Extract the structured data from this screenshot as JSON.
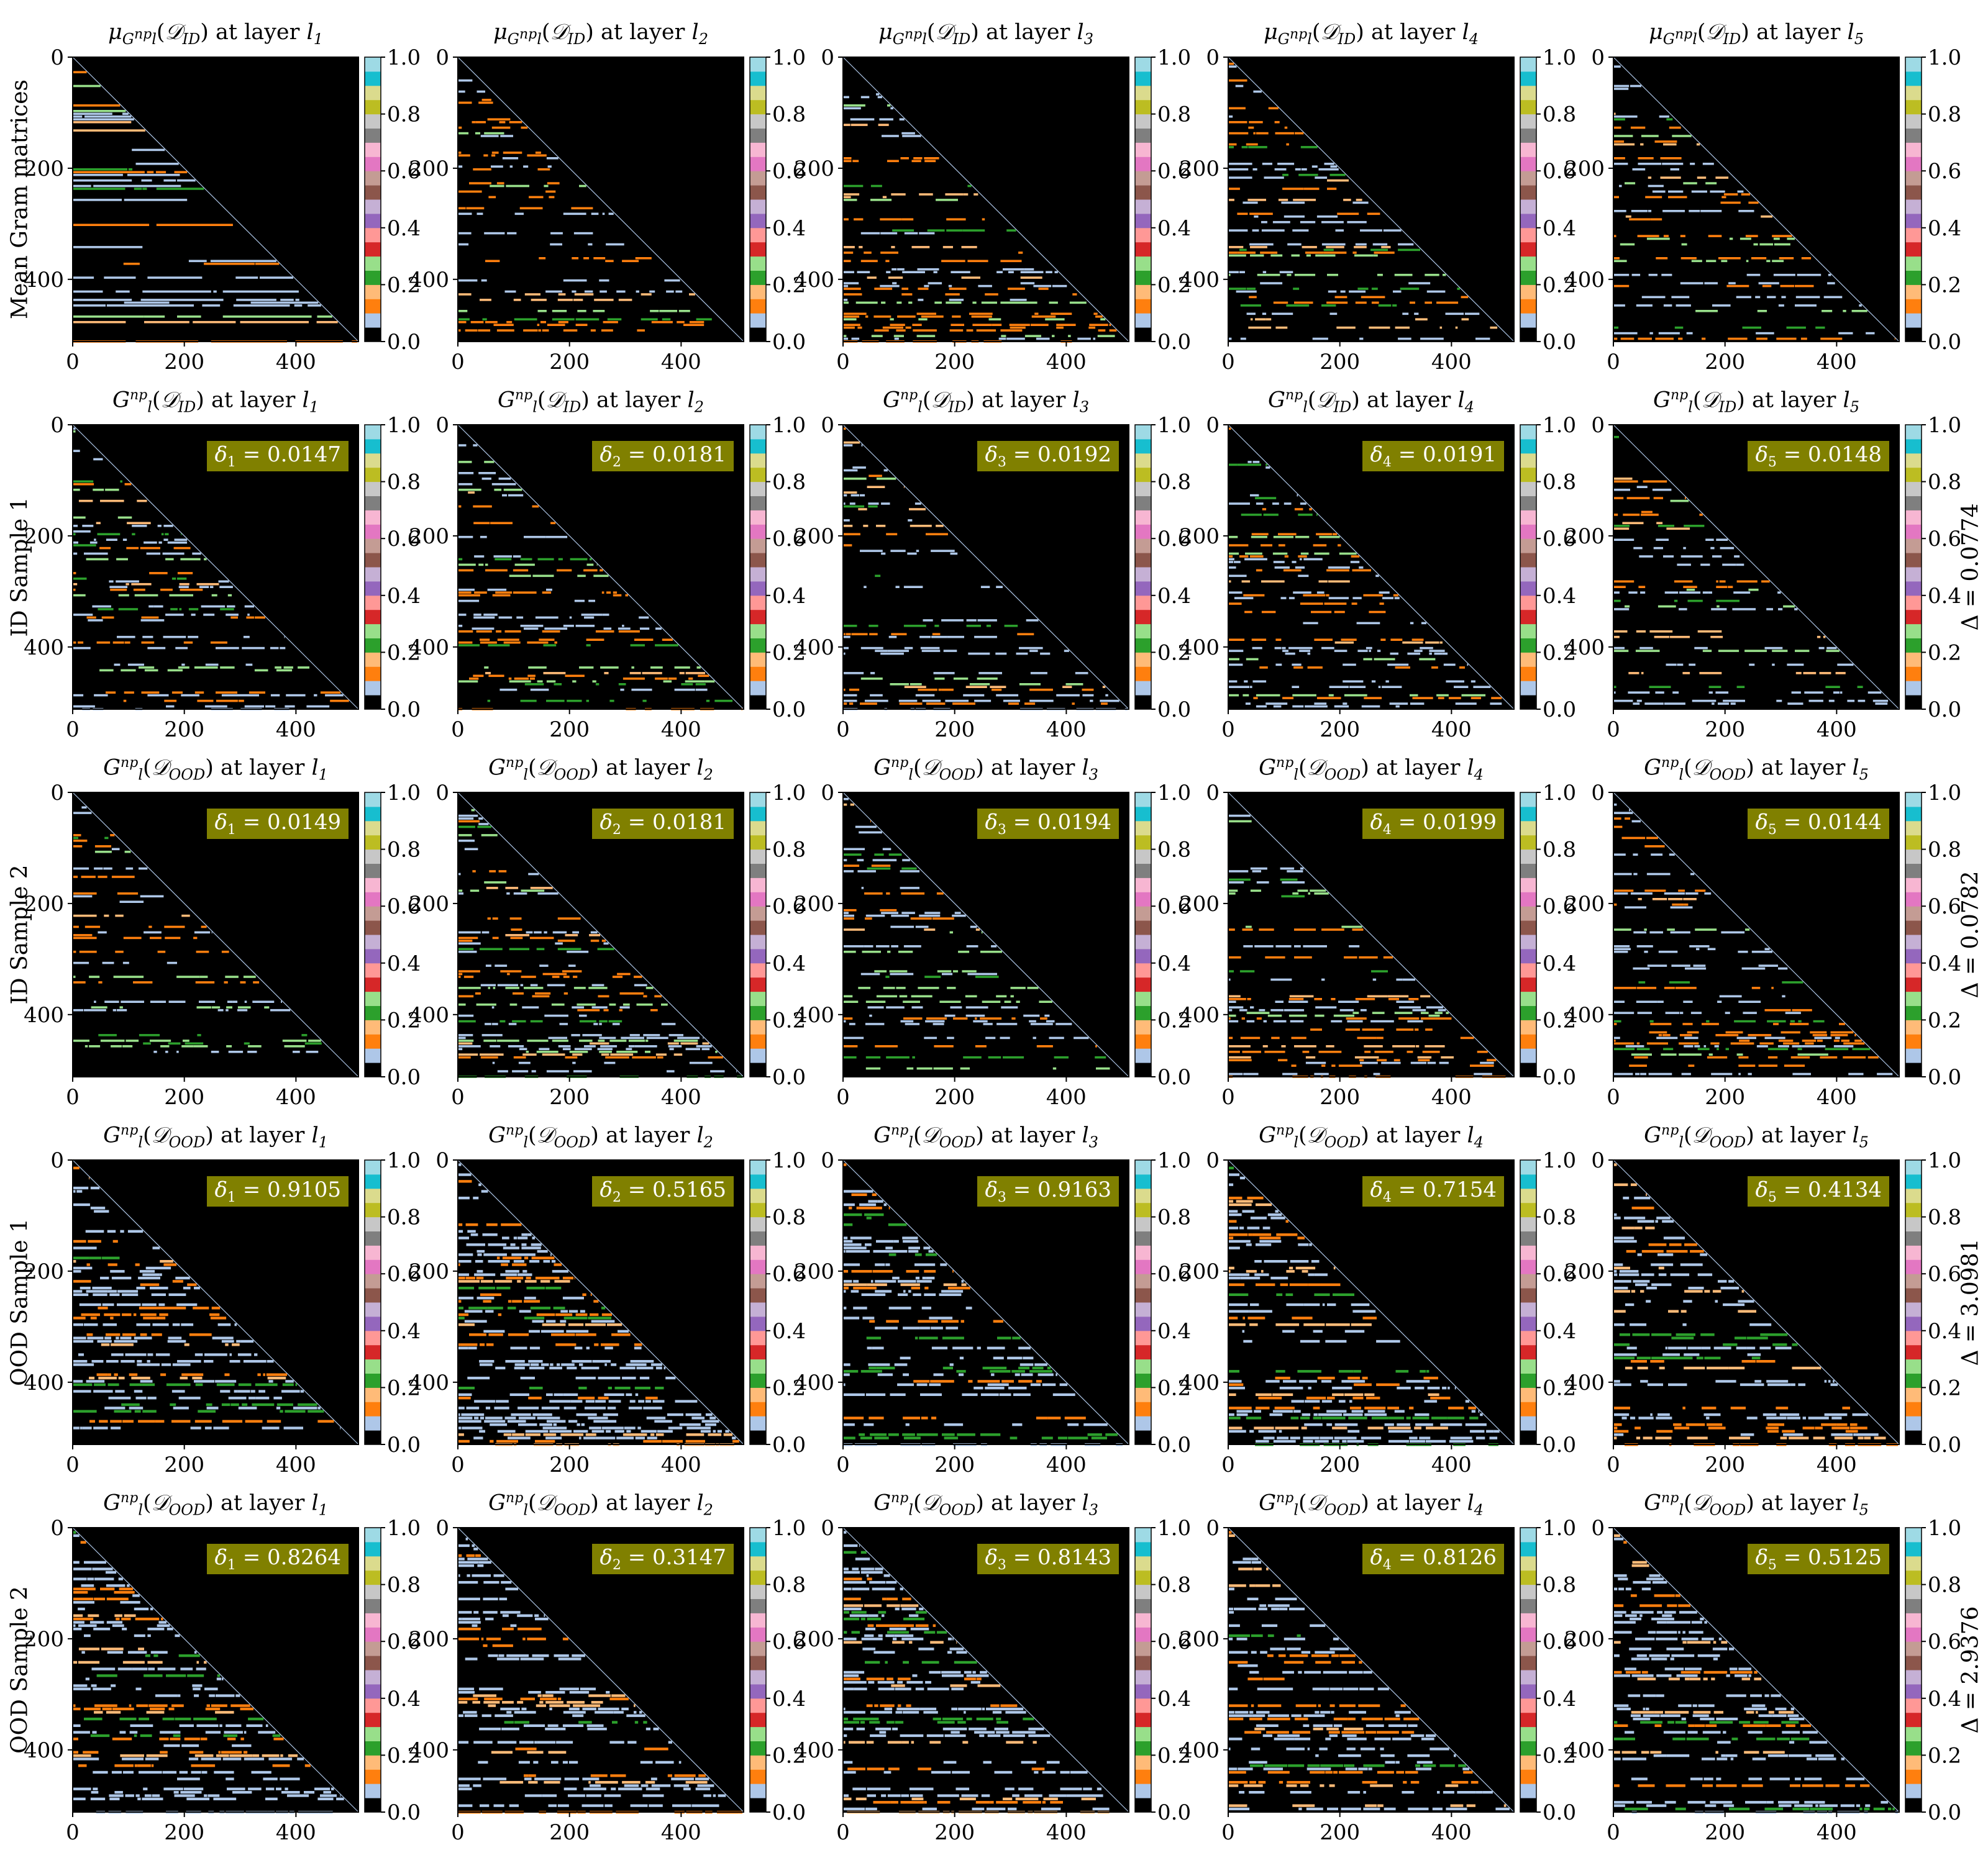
{
  "figure": {
    "columns": [
      {
        "layer_label": "at layer",
        "layer_sub": "1"
      },
      {
        "layer_label": "at layer",
        "layer_sub": "2"
      },
      {
        "layer_label": "at layer",
        "layer_sub": "3"
      },
      {
        "layer_label": "at layer",
        "layer_sub": "4"
      },
      {
        "layer_label": "at layer",
        "layer_sub": "5"
      }
    ],
    "rows": [
      {
        "row_label": "Mean Gram matrices",
        "title_prefix": "μ",
        "title_func": "G",
        "title_sup": "np",
        "title_set": "𝒟",
        "title_set_sub": "ID",
        "delta_total": null,
        "deltas": [
          null,
          null,
          null,
          null,
          null
        ]
      },
      {
        "row_label": "ID Sample 1",
        "title_prefix": "",
        "title_func": "G",
        "title_sup": "np",
        "title_set": "𝒟",
        "title_set_sub": "ID",
        "delta_total": "Δ = 0.0774",
        "deltas": [
          "0.0147",
          "0.0181",
          "0.0192",
          "0.0191",
          "0.0148"
        ]
      },
      {
        "row_label": "ID Sample 2",
        "title_prefix": "",
        "title_func": "G",
        "title_sup": "np",
        "title_set": "𝒟",
        "title_set_sub": "OOD",
        "delta_total": "Δ = 0.0782",
        "deltas": [
          "0.0149",
          "0.0181",
          "0.0194",
          "0.0199",
          "0.0144"
        ]
      },
      {
        "row_label": "OOD Sample 1",
        "title_prefix": "",
        "title_func": "G",
        "title_sup": "np",
        "title_set": "𝒟",
        "title_set_sub": "OOD",
        "delta_total": "Δ = 3.0981",
        "deltas": [
          "0.9105",
          "0.5165",
          "0.9163",
          "0.7154",
          "0.4134"
        ]
      },
      {
        "row_label": "OOD Sample 2",
        "title_prefix": "",
        "title_func": "G",
        "title_sup": "np",
        "title_set": "𝒟",
        "title_set_sub": "OOD",
        "delta_total": "Δ = 2.9376",
        "deltas": [
          "0.8264",
          "0.3147",
          "0.8143",
          "0.8126",
          "0.5125"
        ]
      }
    ],
    "delta_symbol": "δ",
    "colors": {
      "background": "#000000",
      "badge": "#808000",
      "colormap": [
        "#000000",
        "#aec7e8",
        "#ff7f0e",
        "#ffbb78",
        "#2ca02c",
        "#98df8a",
        "#d62728",
        "#ff9896",
        "#9467bd",
        "#c5b0d5",
        "#8c564b",
        "#c49c94",
        "#e377c2",
        "#f7b6d2",
        "#7f7f7f",
        "#c7c7c7",
        "#bcbd22",
        "#dbdb8d",
        "#17becf",
        "#9edae5"
      ]
    }
  },
  "chart_data": {
    "type": "heatmap",
    "description_rows": 5,
    "description_cols": 5,
    "matrix_size": 512,
    "xlim": [
      0,
      512
    ],
    "ylim": [
      512,
      0
    ],
    "x_ticks": [
      0,
      200,
      400
    ],
    "y_ticks": [
      0,
      200,
      400
    ],
    "colorbar_ticks": [
      "0.0",
      "0.2",
      "0.4",
      "0.6",
      "0.8",
      "1.0"
    ],
    "colorbar_range": [
      0.0,
      1.0
    ],
    "colorbar_levels": 20
  }
}
